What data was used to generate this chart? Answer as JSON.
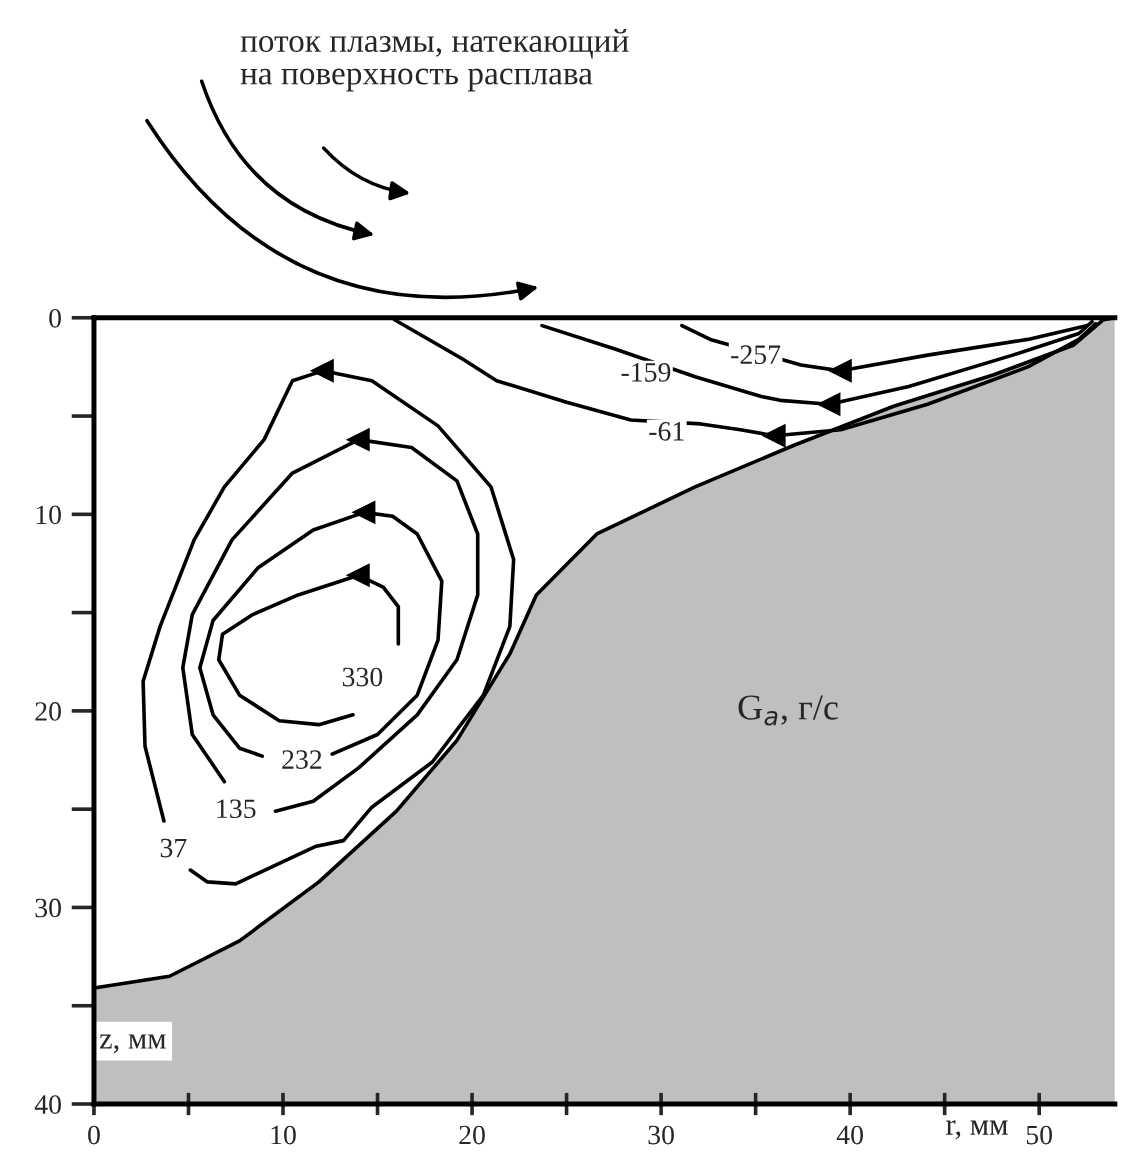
{
  "chart_data": {
    "type": "line",
    "xlabel": "r, мм",
    "ylabel": "z, мм",
    "xlim": [
      0,
      54
    ],
    "ylim": [
      40,
      0
    ],
    "xticks": [
      0,
      {
        "value": 5,
        "label": null
      },
      10,
      {
        "value": 15,
        "label": null
      },
      20,
      {
        "value": 25,
        "label": null
      },
      30,
      {
        "value": 35,
        "label": null
      },
      40,
      {
        "value": 45,
        "label": null
      },
      50
    ],
    "yticks": [
      0,
      {
        "value": 5,
        "label": null
      },
      10,
      {
        "value": 15,
        "label": null
      },
      20,
      {
        "value": 25,
        "label": null
      },
      30,
      {
        "value": 35,
        "label": null
      },
      40
    ],
    "series": [
      {
        "type": "line",
        "color": "#000000",
        "x": [
          0,
          4,
          7.7,
          11.9,
          16,
          19.2,
          22,
          23.4,
          26.6,
          31.8,
          37,
          42.3,
          47.6,
          51.8,
          53.4,
          54
        ],
        "values": [
          34.1,
          33.5,
          31.7,
          28.7,
          25.1,
          21.5,
          17.1,
          14.1,
          11,
          8.6,
          6.5,
          4.5,
          2.9,
          1.4,
          0.1,
          0
        ],
        "lower": [
          34.1,
          33.5,
          31.7,
          28.7,
          25.1,
          21.5,
          17.1,
          14.1,
          11,
          8.6,
          6.5,
          4.5,
          2.9,
          1.4,
          0.1,
          0
        ],
        "upper": [
          40,
          40,
          40,
          40,
          40,
          40,
          40,
          40,
          40,
          40,
          40,
          40,
          40,
          40,
          40,
          40
        ]
      },
      {
        "color": "#000000",
        "x": [
          16.1,
          16.1,
          15.3,
          14,
          10.8,
          8.4,
          6.8,
          6.6,
          7.7,
          9.8,
          11.9,
          13.7
        ],
        "values": [
          16.6,
          14.7,
          13.7,
          13.1,
          14.1,
          15.1,
          16.1,
          17.4,
          19.2,
          20.5,
          20.7,
          20.2
        ]
      },
      {
        "color": "#000000",
        "x": [
          12.6,
          15,
          17.1,
          18.2,
          18.4,
          17.1,
          15.8,
          14.3,
          11.6,
          8.7,
          6.3,
          5.6,
          6.3,
          7.7,
          8.9
        ],
        "values": [
          22.2,
          21.2,
          19.2,
          16.4,
          13.4,
          11,
          10.1,
          9.9,
          10.8,
          12.7,
          15.4,
          17.8,
          20.2,
          21.9,
          22.3
        ]
      },
      {
        "color": "#000000",
        "x": [
          6.9,
          5.2,
          4.7,
          5.2,
          7.3,
          10.5,
          14,
          16.8,
          19.2,
          20.3,
          20.3,
          19.2,
          17.1,
          14,
          11.6,
          9.6
        ],
        "values": [
          23.6,
          21.2,
          17.8,
          15.1,
          11.3,
          7.9,
          6.2,
          6.6,
          8.3,
          11,
          14.1,
          17.4,
          20.2,
          22.9,
          24.6,
          25.1
        ]
      },
      {
        "color": "#000000",
        "x": [
          3.7,
          2.7,
          2.6,
          3.5,
          5.3,
          6.9,
          9,
          10,
          10.5,
          12.1,
          14.7,
          18.2,
          21,
          22.2,
          22,
          20.6,
          17.9,
          14.7,
          13.2,
          11.7,
          7.5,
          6,
          5.1
        ],
        "values": [
          25.6,
          21.8,
          18.5,
          15.7,
          11.3,
          8.6,
          6.2,
          4.2,
          3.2,
          2.7,
          3.2,
          5.5,
          8.6,
          12.3,
          15.7,
          19.2,
          22.6,
          24.9,
          26.6,
          26.9,
          28.8,
          28.7,
          28.1
        ]
      },
      {
        "color": "#000000",
        "x": [
          15.9,
          19.5,
          21.3,
          25,
          28.4,
          32.1,
          34.2,
          36,
          39.5,
          44.1,
          49.4,
          52.1,
          53
        ],
        "values": [
          0.1,
          2.1,
          3.2,
          4.3,
          5.2,
          5.4,
          5.7,
          6,
          5.7,
          4.4,
          2.5,
          1.1,
          0.3
        ]
      },
      {
        "color": "#000000",
        "x": [
          23.7,
          27.6,
          31.8,
          35.3,
          36.3,
          38.9,
          43.1,
          48.6,
          52.1,
          52.8
        ],
        "values": [
          0.4,
          1.6,
          3,
          4,
          4.2,
          4.4,
          3.5,
          1.9,
          0.8,
          0.2
        ]
      },
      {
        "color": "#000000",
        "x": [
          31.1,
          32.6,
          37.4,
          39.5,
          44.1,
          49.4,
          52.5
        ],
        "values": [
          0.4,
          1.1,
          2.4,
          2.7,
          1.9,
          1.1,
          0.4
        ]
      }
    ],
    "annotations": [
      {
        "text": "330",
        "x": 14.2,
        "y": 18.4
      },
      {
        "text": "232",
        "x": 11,
        "y": 22.6
      },
      {
        "text": "135",
        "x": 7.5,
        "y": 25.1
      },
      {
        "text": "37",
        "x": 4.2,
        "y": 27.1
      },
      {
        "text": "-61",
        "x": 30.3,
        "y": 5.9
      },
      {
        "text": "-159",
        "x": 29.2,
        "y": 2.9
      },
      {
        "text": "-257",
        "x": 35,
        "y": 2.0
      },
      "G$_{a}$, г/с",
      "поток плазмы, натекающий\nна поверхность расплава"
    ],
    "grid": false,
    "legend": false
  }
}
